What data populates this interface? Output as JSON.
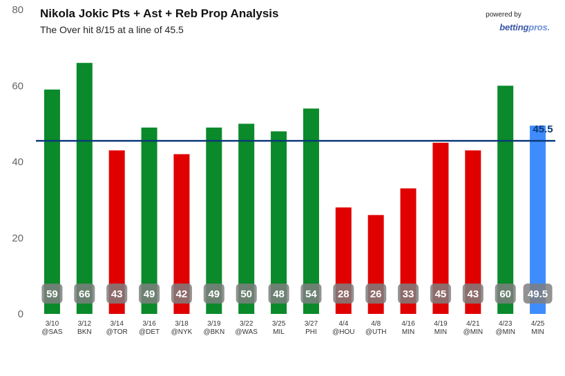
{
  "header": {
    "title": "Nikola Jokic Pts + Ast + Reb Prop Analysis",
    "subtitle": "The Over hit 8/15 at a line of 45.5",
    "powered_by": "powered by",
    "brand_main": "betting",
    "brand_accent": "pros."
  },
  "chart_data": {
    "type": "bar",
    "title": "Nikola Jokic Pts + Ast + Reb Prop Analysis",
    "subtitle": "The Over hit 8/15 at a line of 45.5",
    "categories": [
      [
        "3/10",
        "@SAS"
      ],
      [
        "3/12",
        "BKN"
      ],
      [
        "3/14",
        "@TOR"
      ],
      [
        "3/16",
        "@DET"
      ],
      [
        "3/18",
        "@NYK"
      ],
      [
        "3/19",
        "@BKN"
      ],
      [
        "3/22",
        "@WAS"
      ],
      [
        "3/25",
        "MIL"
      ],
      [
        "3/27",
        "PHI"
      ],
      [
        "4/4",
        "@HOU"
      ],
      [
        "4/8",
        "@UTH"
      ],
      [
        "4/16",
        "MIN"
      ],
      [
        "4/19",
        "MIN"
      ],
      [
        "4/21",
        "@MIN"
      ],
      [
        "4/23",
        "@MIN"
      ],
      [
        "4/25",
        "MIN"
      ]
    ],
    "values": [
      59,
      66,
      43,
      49,
      42,
      49,
      50,
      48,
      54,
      28,
      26,
      33,
      45,
      43,
      60,
      49.5
    ],
    "labels": [
      "59",
      "66",
      "43",
      "49",
      "42",
      "49",
      "50",
      "48",
      "54",
      "28",
      "26",
      "33",
      "45",
      "43",
      "60",
      "49.5"
    ],
    "bar_status": [
      "over",
      "over",
      "under",
      "over",
      "under",
      "over",
      "over",
      "over",
      "over",
      "under",
      "under",
      "under",
      "under",
      "under",
      "over",
      "projection"
    ],
    "line": 45.5,
    "line_label": "45.5",
    "ylim": [
      0,
      80
    ],
    "yticks": [
      0,
      20,
      40,
      60,
      80
    ],
    "colors": {
      "over": "#0a8a2a",
      "under": "#e00000",
      "projection": "#3f8cff",
      "line": "#0b3a78",
      "label_box": "#7f7f7f",
      "tick_text": "#666666",
      "axis_text": "#333333"
    }
  }
}
